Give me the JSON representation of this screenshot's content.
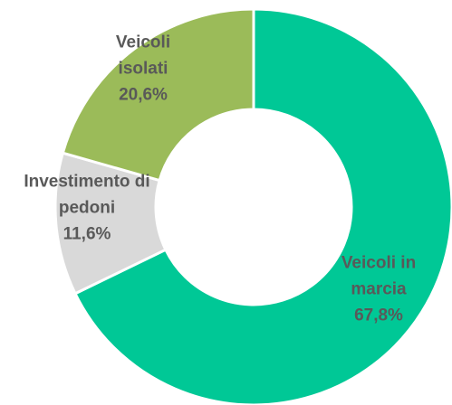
{
  "chart_data": {
    "type": "donut",
    "categories": [
      "Veicoli in marcia",
      "Investimento di pedoni",
      "Veicoli isolati"
    ],
    "values": [
      67.8,
      11.6,
      20.6
    ],
    "value_labels": [
      "67,8%",
      "11,6%",
      "20,6%"
    ],
    "colors": [
      "#00c896",
      "#d9d9d9",
      "#9bbb59"
    ]
  }
}
